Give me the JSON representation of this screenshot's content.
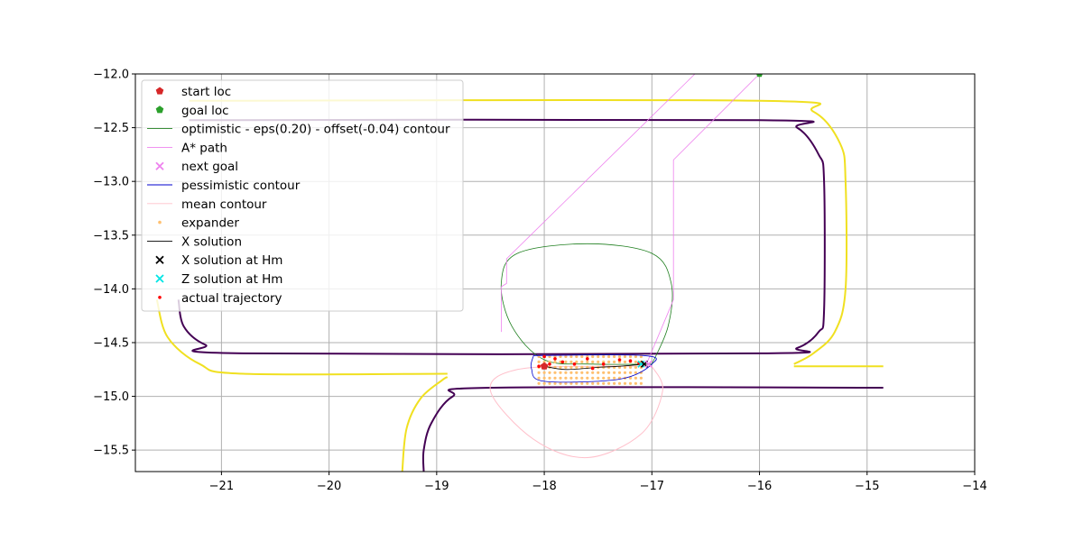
{
  "chart_data": {
    "type": "line",
    "title": "",
    "xlabel": "",
    "ylabel": "",
    "xlim": [
      -21.8,
      -14.0
    ],
    "ylim": [
      -15.7,
      -12.0
    ],
    "xticks": [
      -21,
      -20,
      -19,
      -18,
      -17,
      -16,
      -15,
      -14
    ],
    "yticks": [
      -12.0,
      -12.5,
      -13.0,
      -13.5,
      -14.0,
      -14.5,
      -15.0,
      -15.5
    ],
    "grid": true,
    "legend_position": "upper-left",
    "legend": [
      {
        "label": "start loc",
        "kind": "marker-pentagon",
        "color": "#d62728"
      },
      {
        "label": "goal loc",
        "kind": "marker-pentagon",
        "color": "#2ca02c"
      },
      {
        "label": "optimistic - eps(0.20) - offset(-0.04) contour",
        "kind": "line",
        "color": "#1f7f1f"
      },
      {
        "label": "A* path",
        "kind": "line",
        "color": "#ee82ee"
      },
      {
        "label": "next goal",
        "kind": "marker-x",
        "color": "#ee82ee"
      },
      {
        "label": "pessimistic contour",
        "kind": "line",
        "color": "#0000cc"
      },
      {
        "label": "mean contour",
        "kind": "line",
        "color": "#ffc0cb"
      },
      {
        "label": "expander",
        "kind": "marker-dot",
        "color": "#ffc070"
      },
      {
        "label": "X solution",
        "kind": "line",
        "color": "#000000"
      },
      {
        "label": "X solution at Hm",
        "kind": "marker-x",
        "color": "#000000"
      },
      {
        "label": "Z solution at Hm",
        "kind": "marker-x",
        "color": "#00e5e5"
      },
      {
        "label": "actual trajectory",
        "kind": "marker-dot",
        "color": "#ff0000"
      }
    ],
    "start_loc": [
      -18.0,
      -14.72
    ],
    "goal_loc": [
      -16.0,
      -12.0
    ],
    "next_goal": [
      -17.03,
      -14.7
    ],
    "x_solution_hm": [
      -17.07,
      -14.7
    ],
    "z_solution_hm": [
      -17.1,
      -14.7
    ],
    "track_inner": [
      [
        -14.85,
        -14.92
      ],
      [
        -18.5,
        -14.92
      ],
      [
        -18.85,
        -15.0
      ],
      [
        -19.05,
        -15.25
      ],
      [
        -19.12,
        -15.5
      ],
      [
        -19.12,
        -15.7
      ]
    ],
    "track_outer": [
      [
        -21.3,
        -12.43
      ],
      [
        -16.0,
        -12.43
      ],
      [
        -15.65,
        -12.5
      ],
      [
        -15.45,
        -12.75
      ],
      [
        -15.4,
        -13.0
      ],
      [
        -15.4,
        -14.2
      ],
      [
        -15.45,
        -14.4
      ],
      [
        -15.65,
        -14.55
      ],
      [
        -16.0,
        -14.6
      ],
      [
        -20.8,
        -14.6
      ],
      [
        -21.15,
        -14.52
      ],
      [
        -21.35,
        -14.35
      ],
      [
        -21.4,
        -14.1
      ]
    ],
    "yellow_outer": [
      [
        -21.3,
        -12.25
      ],
      [
        -16.0,
        -12.25
      ],
      [
        -15.5,
        -12.35
      ],
      [
        -15.25,
        -12.65
      ],
      [
        -15.2,
        -13.0
      ],
      [
        -15.2,
        -14.0
      ],
      [
        -15.3,
        -14.4
      ],
      [
        -15.5,
        -14.6
      ],
      [
        -15.68,
        -14.7
      ]
    ],
    "yellow_inner": [
      [
        -21.6,
        -14.1
      ],
      [
        -21.5,
        -14.45
      ],
      [
        -21.2,
        -14.7
      ],
      [
        -20.8,
        -14.79
      ],
      [
        -18.9,
        -14.79
      ]
    ],
    "yellow_bottom_curve": [
      [
        -18.9,
        -14.82
      ],
      [
        -18.95,
        -14.85
      ],
      [
        -19.15,
        -15.02
      ],
      [
        -19.28,
        -15.3
      ],
      [
        -19.32,
        -15.7
      ]
    ],
    "yellow_right_stub": [
      [
        -15.68,
        -14.72
      ],
      [
        -14.85,
        -14.72
      ]
    ],
    "astar_path": [
      [
        -16.0,
        -12.0
      ],
      [
        -16.8,
        -12.8
      ],
      [
        -16.8,
        -14.1
      ],
      [
        -16.82,
        -14.15
      ],
      [
        -17.05,
        -14.7
      ]
    ],
    "astar_path_left": [
      [
        -18.4,
        -14.4
      ],
      [
        -18.4,
        -13.98
      ],
      [
        -18.35,
        -13.95
      ],
      [
        -18.35,
        -13.72
      ],
      [
        -16.6,
        -12.0
      ]
    ],
    "optimistic_contour": [
      [
        -17.0,
        -14.7
      ],
      [
        -16.85,
        -14.35
      ],
      [
        -16.82,
        -13.95
      ],
      [
        -17.0,
        -13.67
      ],
      [
        -17.6,
        -13.58
      ],
      [
        -18.25,
        -13.67
      ],
      [
        -18.4,
        -13.95
      ],
      [
        -18.3,
        -14.35
      ],
      [
        -18.0,
        -14.66
      ],
      [
        -17.55,
        -14.7
      ],
      [
        -17.0,
        -14.7
      ]
    ],
    "mean_contour": [
      [
        -17.0,
        -14.72
      ],
      [
        -16.9,
        -14.95
      ],
      [
        -17.1,
        -15.35
      ],
      [
        -17.6,
        -15.57
      ],
      [
        -18.1,
        -15.4
      ],
      [
        -18.5,
        -14.95
      ],
      [
        -18.25,
        -14.75
      ],
      [
        -17.5,
        -14.72
      ],
      [
        -17.0,
        -14.72
      ]
    ],
    "pessimistic_contour": [
      [
        -18.1,
        -14.62
      ],
      [
        -17.08,
        -14.62
      ],
      [
        -17.0,
        -14.7
      ],
      [
        -17.3,
        -14.84
      ],
      [
        -18.0,
        -14.86
      ],
      [
        -18.12,
        -14.74
      ],
      [
        -18.1,
        -14.62
      ]
    ],
    "x_solution_line": [
      [
        -18.0,
        -14.72
      ],
      [
        -17.8,
        -14.75
      ],
      [
        -17.5,
        -14.73
      ],
      [
        -17.3,
        -14.72
      ],
      [
        -17.07,
        -14.7
      ]
    ],
    "actual_trajectory": [
      [
        -18.0,
        -14.63
      ],
      [
        -17.95,
        -14.7
      ],
      [
        -17.9,
        -14.65
      ],
      [
        -17.83,
        -14.68
      ],
      [
        -17.72,
        -14.7
      ],
      [
        -17.6,
        -14.65
      ],
      [
        -17.45,
        -14.7
      ],
      [
        -17.3,
        -14.66
      ],
      [
        -17.2,
        -14.67
      ],
      [
        -17.12,
        -14.69
      ],
      [
        -18.05,
        -14.72
      ],
      [
        -17.55,
        -14.74
      ]
    ],
    "expander_bounds": {
      "x": [
        -18.05,
        -17.1
      ],
      "y": [
        -14.88,
        -14.62
      ],
      "step_x": 0.05,
      "step_y": 0.05
    }
  }
}
